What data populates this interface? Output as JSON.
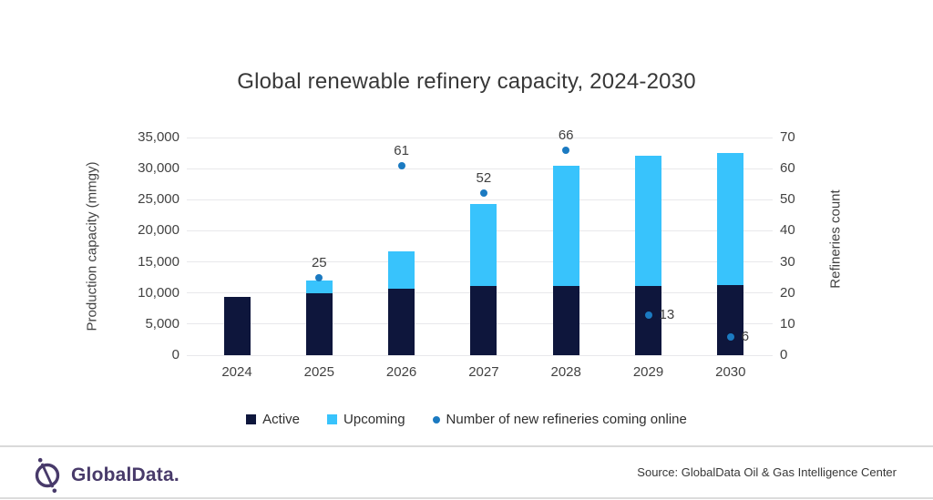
{
  "title": "Global renewable refinery capacity, 2024-2030",
  "chart_data": {
    "type": "combo",
    "categories": [
      "2024",
      "2025",
      "2026",
      "2027",
      "2028",
      "2029",
      "2030"
    ],
    "series": [
      {
        "name": "Active",
        "kind": "bar",
        "stacked": true,
        "axis": "left",
        "color": "#0e163c",
        "values": [
          9400,
          9950,
          10650,
          11100,
          11200,
          11200,
          11250
        ]
      },
      {
        "name": "Upcoming",
        "kind": "bar",
        "stacked": true,
        "axis": "left",
        "color": "#38c3fc",
        "values": [
          0,
          2050,
          6100,
          13200,
          19200,
          20800,
          21250
        ]
      },
      {
        "name": "Number of new refineries coming online",
        "kind": "point",
        "axis": "right",
        "color": "#1b7ac1",
        "values": [
          null,
          25,
          61,
          52,
          66,
          13,
          6
        ],
        "labels": [
          null,
          "25",
          "61",
          "52",
          "66",
          "13",
          "6"
        ],
        "label_side": [
          null,
          "above",
          "above",
          "above",
          "above",
          "right",
          "right"
        ]
      }
    ],
    "left_axis": {
      "title": "Production capacity (mmgy)",
      "min": 0,
      "max": 35000,
      "step": 5000,
      "ticks": [
        "35,000",
        "30,000",
        "25,000",
        "20,000",
        "15,000",
        "10,000",
        "5,000",
        "0"
      ]
    },
    "right_axis": {
      "title": "Refineries count",
      "min": 0,
      "max": 70,
      "step": 10,
      "ticks": [
        "70",
        "60",
        "50",
        "40",
        "30",
        "20",
        "10",
        "0"
      ]
    },
    "grid": true,
    "legend_position": "bottom"
  },
  "legend": {
    "items": [
      {
        "label": "Active",
        "marker": "square",
        "color": "#0e163c"
      },
      {
        "label": "Upcoming",
        "marker": "square",
        "color": "#38c3fc"
      },
      {
        "label": "Number of new refineries coming online",
        "marker": "dot",
        "color": "#1b7ac1"
      }
    ]
  },
  "footer": {
    "brand": "GlobalData.",
    "brand_color": "#483a6a",
    "source": "Source: GlobalData Oil & Gas Intelligence Center"
  },
  "icons": {
    "logo": "globaldata-logo"
  }
}
